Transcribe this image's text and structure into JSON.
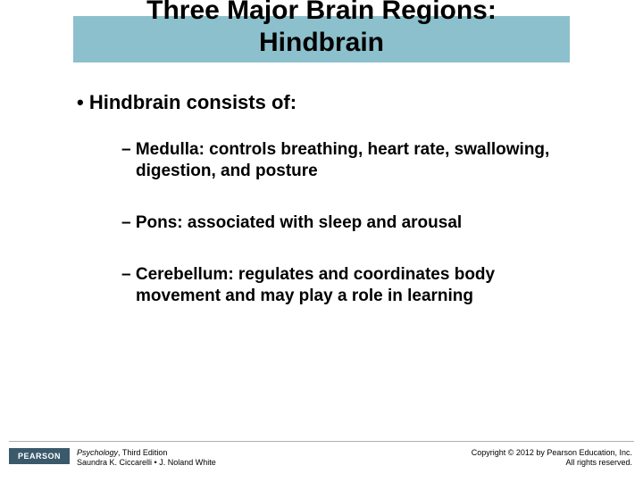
{
  "title_line1": "Three Major Brain Regions:",
  "title_line2": "Hindbrain",
  "banner_color": "#8cc0cc",
  "main_bullet": "•  Hindbrain consists of:",
  "sub_bullets": [
    "– Medulla: controls breathing, heart rate, swallowing, digestion, and posture",
    "– Pons: associated with sleep and arousal",
    "– Cerebellum: regulates and coordinates body movement and may play a role in learning"
  ],
  "footer": {
    "logo_text": "PEARSON",
    "book_title": "Psychology",
    "book_edition": ", Third Edition",
    "authors": "Saundra K. Ciccarelli • J. Noland White",
    "copyright_line1": "Copyright © 2012 by Pearson Education, Inc.",
    "copyright_line2": "All rights reserved."
  }
}
